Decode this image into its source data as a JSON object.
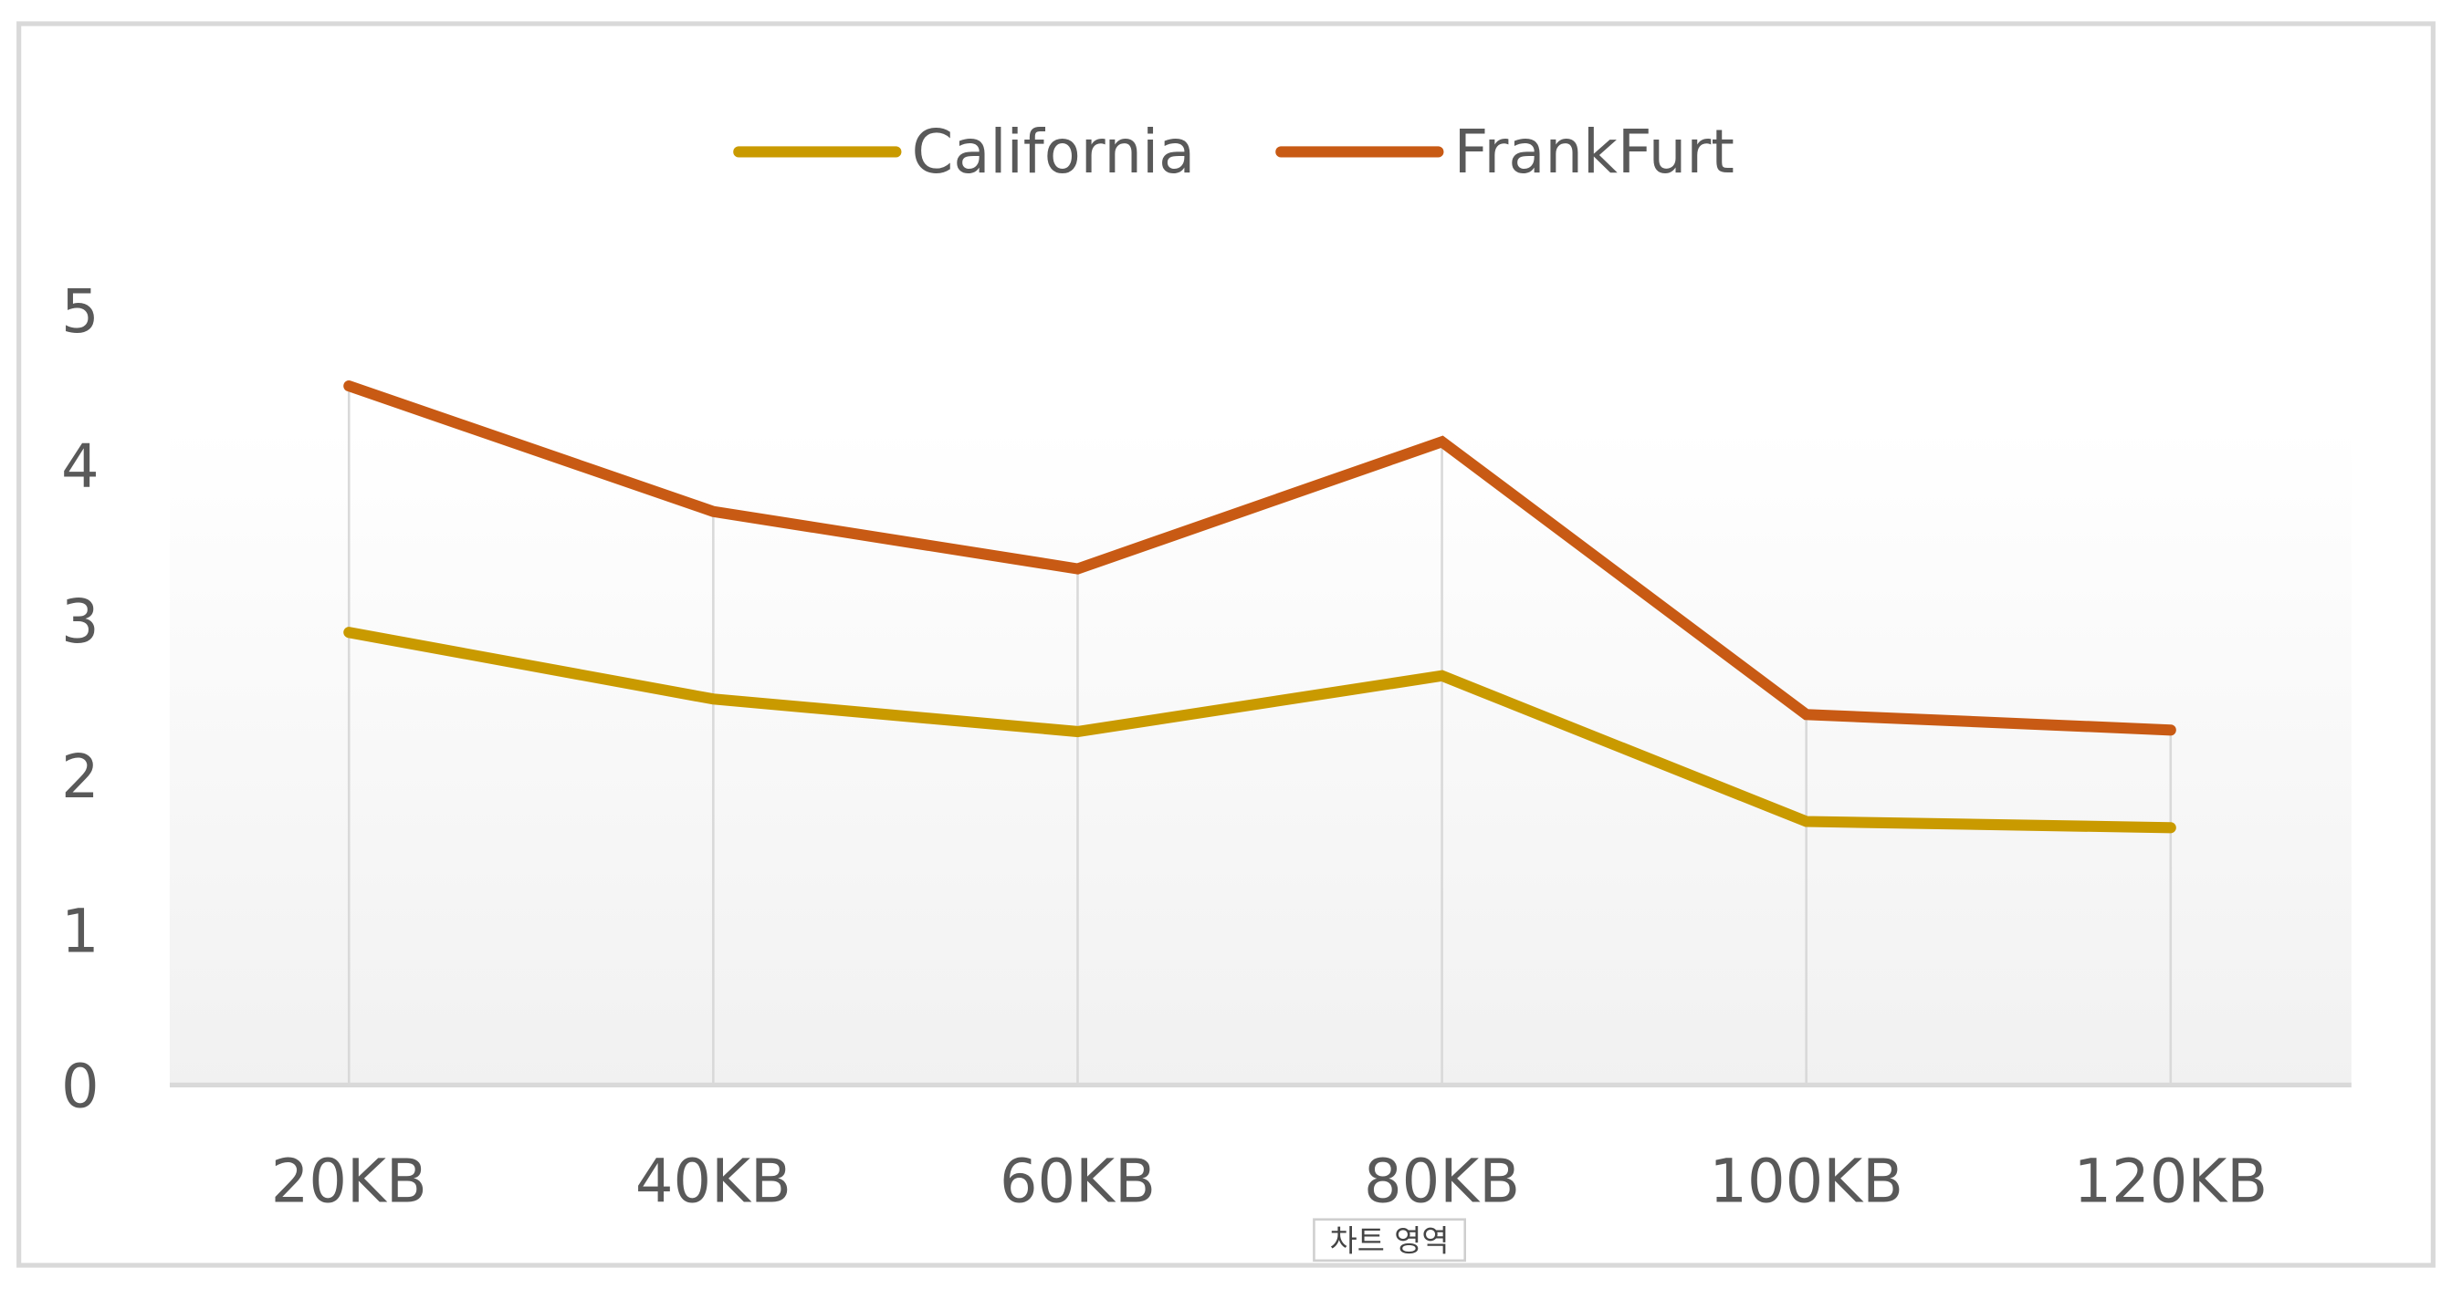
{
  "chart_data": {
    "type": "line",
    "title": "",
    "xlabel": "",
    "ylabel": "",
    "categories": [
      "20KB",
      "40KB",
      "60KB",
      "80KB",
      "100KB",
      "120KB"
    ],
    "ylim": [
      0,
      5
    ],
    "yticks": [
      "0",
      "1",
      "2",
      "3",
      "4",
      "5"
    ],
    "grid": "vertical",
    "legend_position": "top",
    "series": [
      {
        "name": "California",
        "color": "#C99A00",
        "values": [
          2.92,
          2.49,
          2.28,
          2.64,
          1.7,
          1.66
        ]
      },
      {
        "name": "FrankFurt",
        "color": "#C85A14",
        "values": [
          4.51,
          3.7,
          3.33,
          4.15,
          2.39,
          2.29
        ]
      }
    ]
  },
  "tooltip": {
    "text": "차트 영역"
  }
}
